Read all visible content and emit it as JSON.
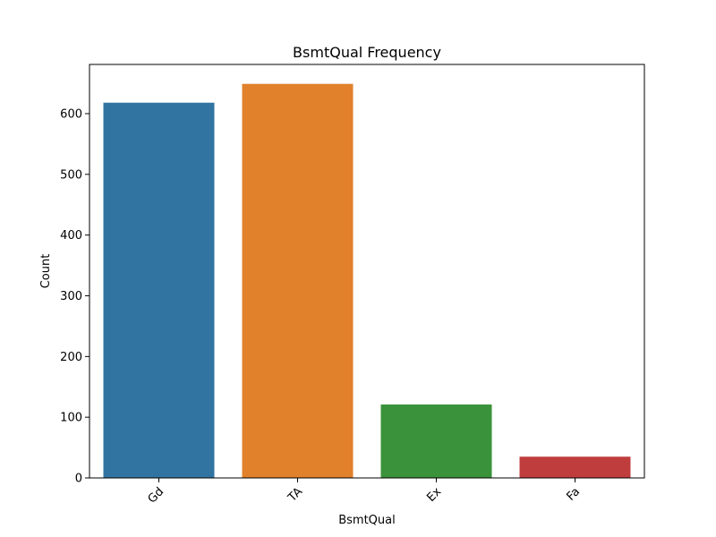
{
  "chart_data": {
    "type": "bar",
    "title": "BsmtQual Frequency",
    "xlabel": "BsmtQual",
    "ylabel": "Count",
    "categories": [
      "Gd",
      "TA",
      "Ex",
      "Fa"
    ],
    "values": [
      618,
      649,
      121,
      35
    ],
    "colors": [
      "#3274a1",
      "#e1812c",
      "#3a923a",
      "#c03d3e"
    ],
    "ylim": [
      0,
      681
    ],
    "yticks": [
      0,
      100,
      200,
      300,
      400,
      500,
      600
    ],
    "xtick_rotation_deg": 45,
    "grid": false,
    "legend": "none"
  }
}
